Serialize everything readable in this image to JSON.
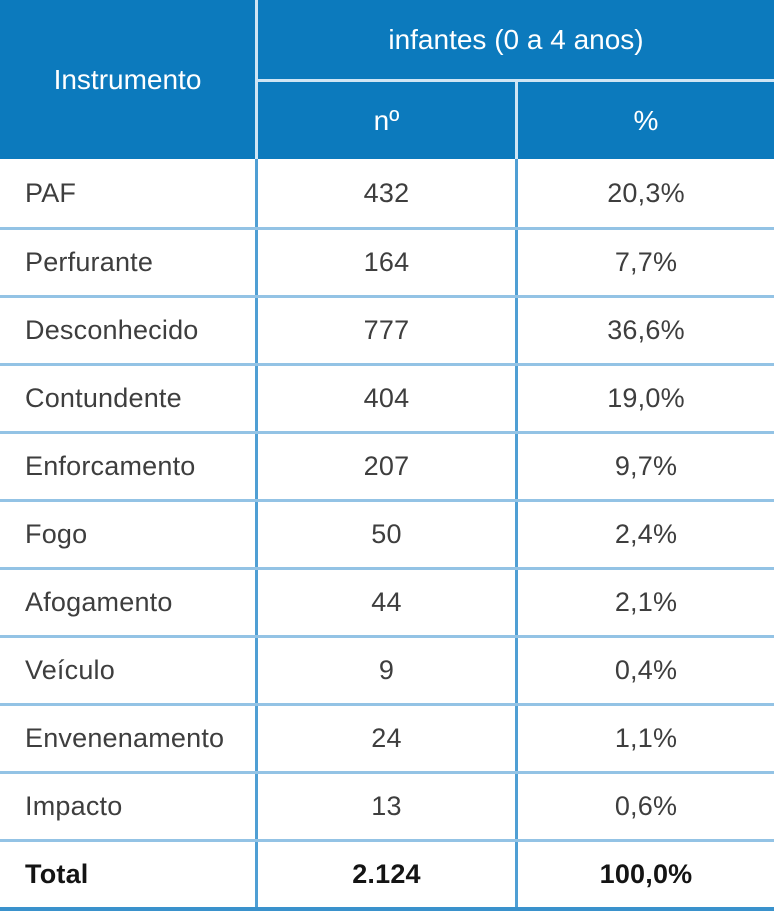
{
  "table": {
    "header": {
      "instrument_label": "Instrumento",
      "group_label": "infantes (0 a 4 anos)",
      "count_label": "nº",
      "percent_label": "%"
    },
    "rows": [
      {
        "label": "PAF",
        "n": "432",
        "pct": "20,3%"
      },
      {
        "label": "Perfurante",
        "n": "164",
        "pct": "7,7%"
      },
      {
        "label": "Desconhecido",
        "n": "777",
        "pct": "36,6%"
      },
      {
        "label": "Contundente",
        "n": "404",
        "pct": "19,0%"
      },
      {
        "label": "Enforcamento",
        "n": "207",
        "pct": "9,7%"
      },
      {
        "label": "Fogo",
        "n": "50",
        "pct": "2,4%"
      },
      {
        "label": "Afogamento",
        "n": "44",
        "pct": "2,1%"
      },
      {
        "label": "Veículo",
        "n": "9",
        "pct": "0,4%"
      },
      {
        "label": "Envenenamento",
        "n": "24",
        "pct": "1,1%"
      },
      {
        "label": "Impacto",
        "n": "13",
        "pct": "0,6%"
      }
    ],
    "total": {
      "label": "Total",
      "n": "2.124",
      "pct": "100,0%"
    }
  },
  "colors": {
    "header_bg": "#0c7abd",
    "header_divider": "#cfe5f4",
    "row_divider": "#93c3e5",
    "column_divider": "#4f9fd4",
    "bottom_border": "#3a92cc",
    "body_text": "#3e3e3e",
    "total_text": "#141414",
    "header_text": "#ffffff"
  },
  "chart_data": {
    "type": "table",
    "title": "infantes (0 a 4 anos)",
    "columns": [
      "Instrumento",
      "nº",
      "%"
    ],
    "categories": [
      "PAF",
      "Perfurante",
      "Desconhecido",
      "Contundente",
      "Enforcamento",
      "Fogo",
      "Afogamento",
      "Veículo",
      "Envenenamento",
      "Impacto"
    ],
    "series": [
      {
        "name": "nº",
        "values": [
          432,
          164,
          777,
          404,
          207,
          50,
          44,
          9,
          24,
          13
        ]
      },
      {
        "name": "%",
        "values": [
          20.3,
          7.7,
          36.6,
          19.0,
          9.7,
          2.4,
          2.1,
          0.4,
          1.1,
          0.6
        ]
      }
    ],
    "total": {
      "n": 2124,
      "pct": 100.0
    }
  }
}
